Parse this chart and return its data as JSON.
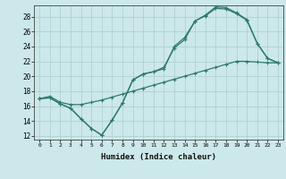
{
  "title": "",
  "xlabel": "Humidex (Indice chaleur)",
  "bg_color": "#cce8ea",
  "grid_color": "#aacccc",
  "line_color": "#2d7a6b",
  "xlim": [
    -0.5,
    23.5
  ],
  "ylim": [
    11.5,
    29.5
  ],
  "xticks": [
    0,
    1,
    2,
    3,
    4,
    5,
    6,
    7,
    8,
    9,
    10,
    11,
    12,
    13,
    14,
    15,
    16,
    17,
    18,
    19,
    20,
    21,
    22,
    23
  ],
  "yticks": [
    12,
    14,
    16,
    18,
    20,
    22,
    24,
    26,
    28
  ],
  "line1_x": [
    0,
    1,
    2,
    3,
    4,
    5,
    6,
    7,
    8,
    9,
    10,
    11,
    12,
    13,
    14,
    15,
    16,
    17,
    18,
    19,
    20,
    21,
    22,
    23
  ],
  "line1_y": [
    17.0,
    17.1,
    16.3,
    15.7,
    14.3,
    13.0,
    12.1,
    14.1,
    16.4,
    19.5,
    20.3,
    20.6,
    21.0,
    24.0,
    25.2,
    27.4,
    28.2,
    29.3,
    29.2,
    28.5,
    27.6,
    24.4,
    22.4,
    21.8
  ],
  "line2_x": [
    0,
    1,
    2,
    3,
    4,
    5,
    6,
    7,
    8,
    9,
    10,
    11,
    12,
    13,
    14,
    15,
    16,
    17,
    18,
    19,
    20,
    21,
    22,
    23
  ],
  "line2_y": [
    17.0,
    17.1,
    16.3,
    15.7,
    14.3,
    13.0,
    12.1,
    14.1,
    16.4,
    19.5,
    20.3,
    20.6,
    21.2,
    23.8,
    24.9,
    27.4,
    28.1,
    29.1,
    29.0,
    28.4,
    27.5,
    24.4,
    22.4,
    21.8
  ],
  "line3_x": [
    0,
    1,
    2,
    3,
    4,
    5,
    6,
    7,
    8,
    9,
    10,
    11,
    12,
    13,
    14,
    15,
    16,
    17,
    18,
    19,
    20,
    21,
    22,
    23
  ],
  "line3_y": [
    17.0,
    17.3,
    16.5,
    16.2,
    16.2,
    16.5,
    16.8,
    17.2,
    17.6,
    18.0,
    18.4,
    18.8,
    19.2,
    19.6,
    20.0,
    20.4,
    20.8,
    21.2,
    21.6,
    22.0,
    22.0,
    21.9,
    21.8,
    21.8
  ]
}
